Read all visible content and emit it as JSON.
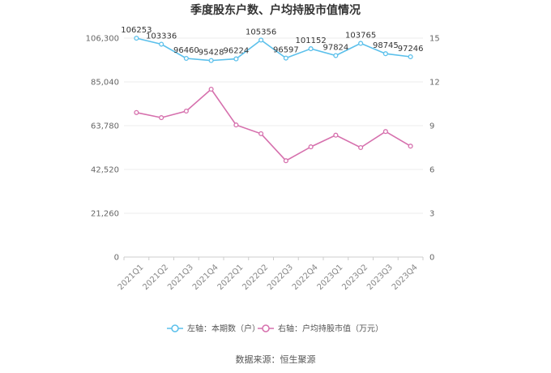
{
  "chart_data": {
    "type": "line",
    "title": "季度股东户数、户均持股市值情况",
    "categories": [
      "2021Q1",
      "2021Q2",
      "2021Q3",
      "2021Q4",
      "2022Q1",
      "2022Q2",
      "2022Q3",
      "2022Q4",
      "2023Q1",
      "2023Q2",
      "2023Q3",
      "2023Q4"
    ],
    "left_axis": {
      "ylim": [
        0,
        106300
      ],
      "ticks": [
        "0",
        "21,260",
        "42,520",
        "63,780",
        "85,040",
        "106,300"
      ]
    },
    "right_axis": {
      "ylim": [
        0,
        15
      ],
      "ticks": [
        "0",
        "3",
        "6",
        "9",
        "12",
        "15"
      ]
    },
    "series": [
      {
        "name": "左轴：本期数（户）",
        "axis": "left",
        "color": "#5bc0eb",
        "values": [
          106253,
          103336,
          96460,
          95428,
          96224,
          105356,
          96597,
          101152,
          97824,
          103765,
          98745,
          97246
        ],
        "labels": [
          "106253",
          "103336",
          "96460",
          "95428",
          "96224",
          "105356",
          "96597",
          "101152",
          "97824",
          "103765",
          "98745",
          "97246"
        ]
      },
      {
        "name": "右轴：户均持股市值（万元）",
        "axis": "right",
        "color": "#d670ad",
        "values": [
          9.9,
          9.55,
          10.0,
          11.5,
          9.05,
          8.45,
          6.6,
          7.55,
          8.35,
          7.5,
          8.6,
          7.6
        ]
      }
    ],
    "grid": true,
    "legend_position": "bottom",
    "source": "数据来源：恒生聚源"
  }
}
